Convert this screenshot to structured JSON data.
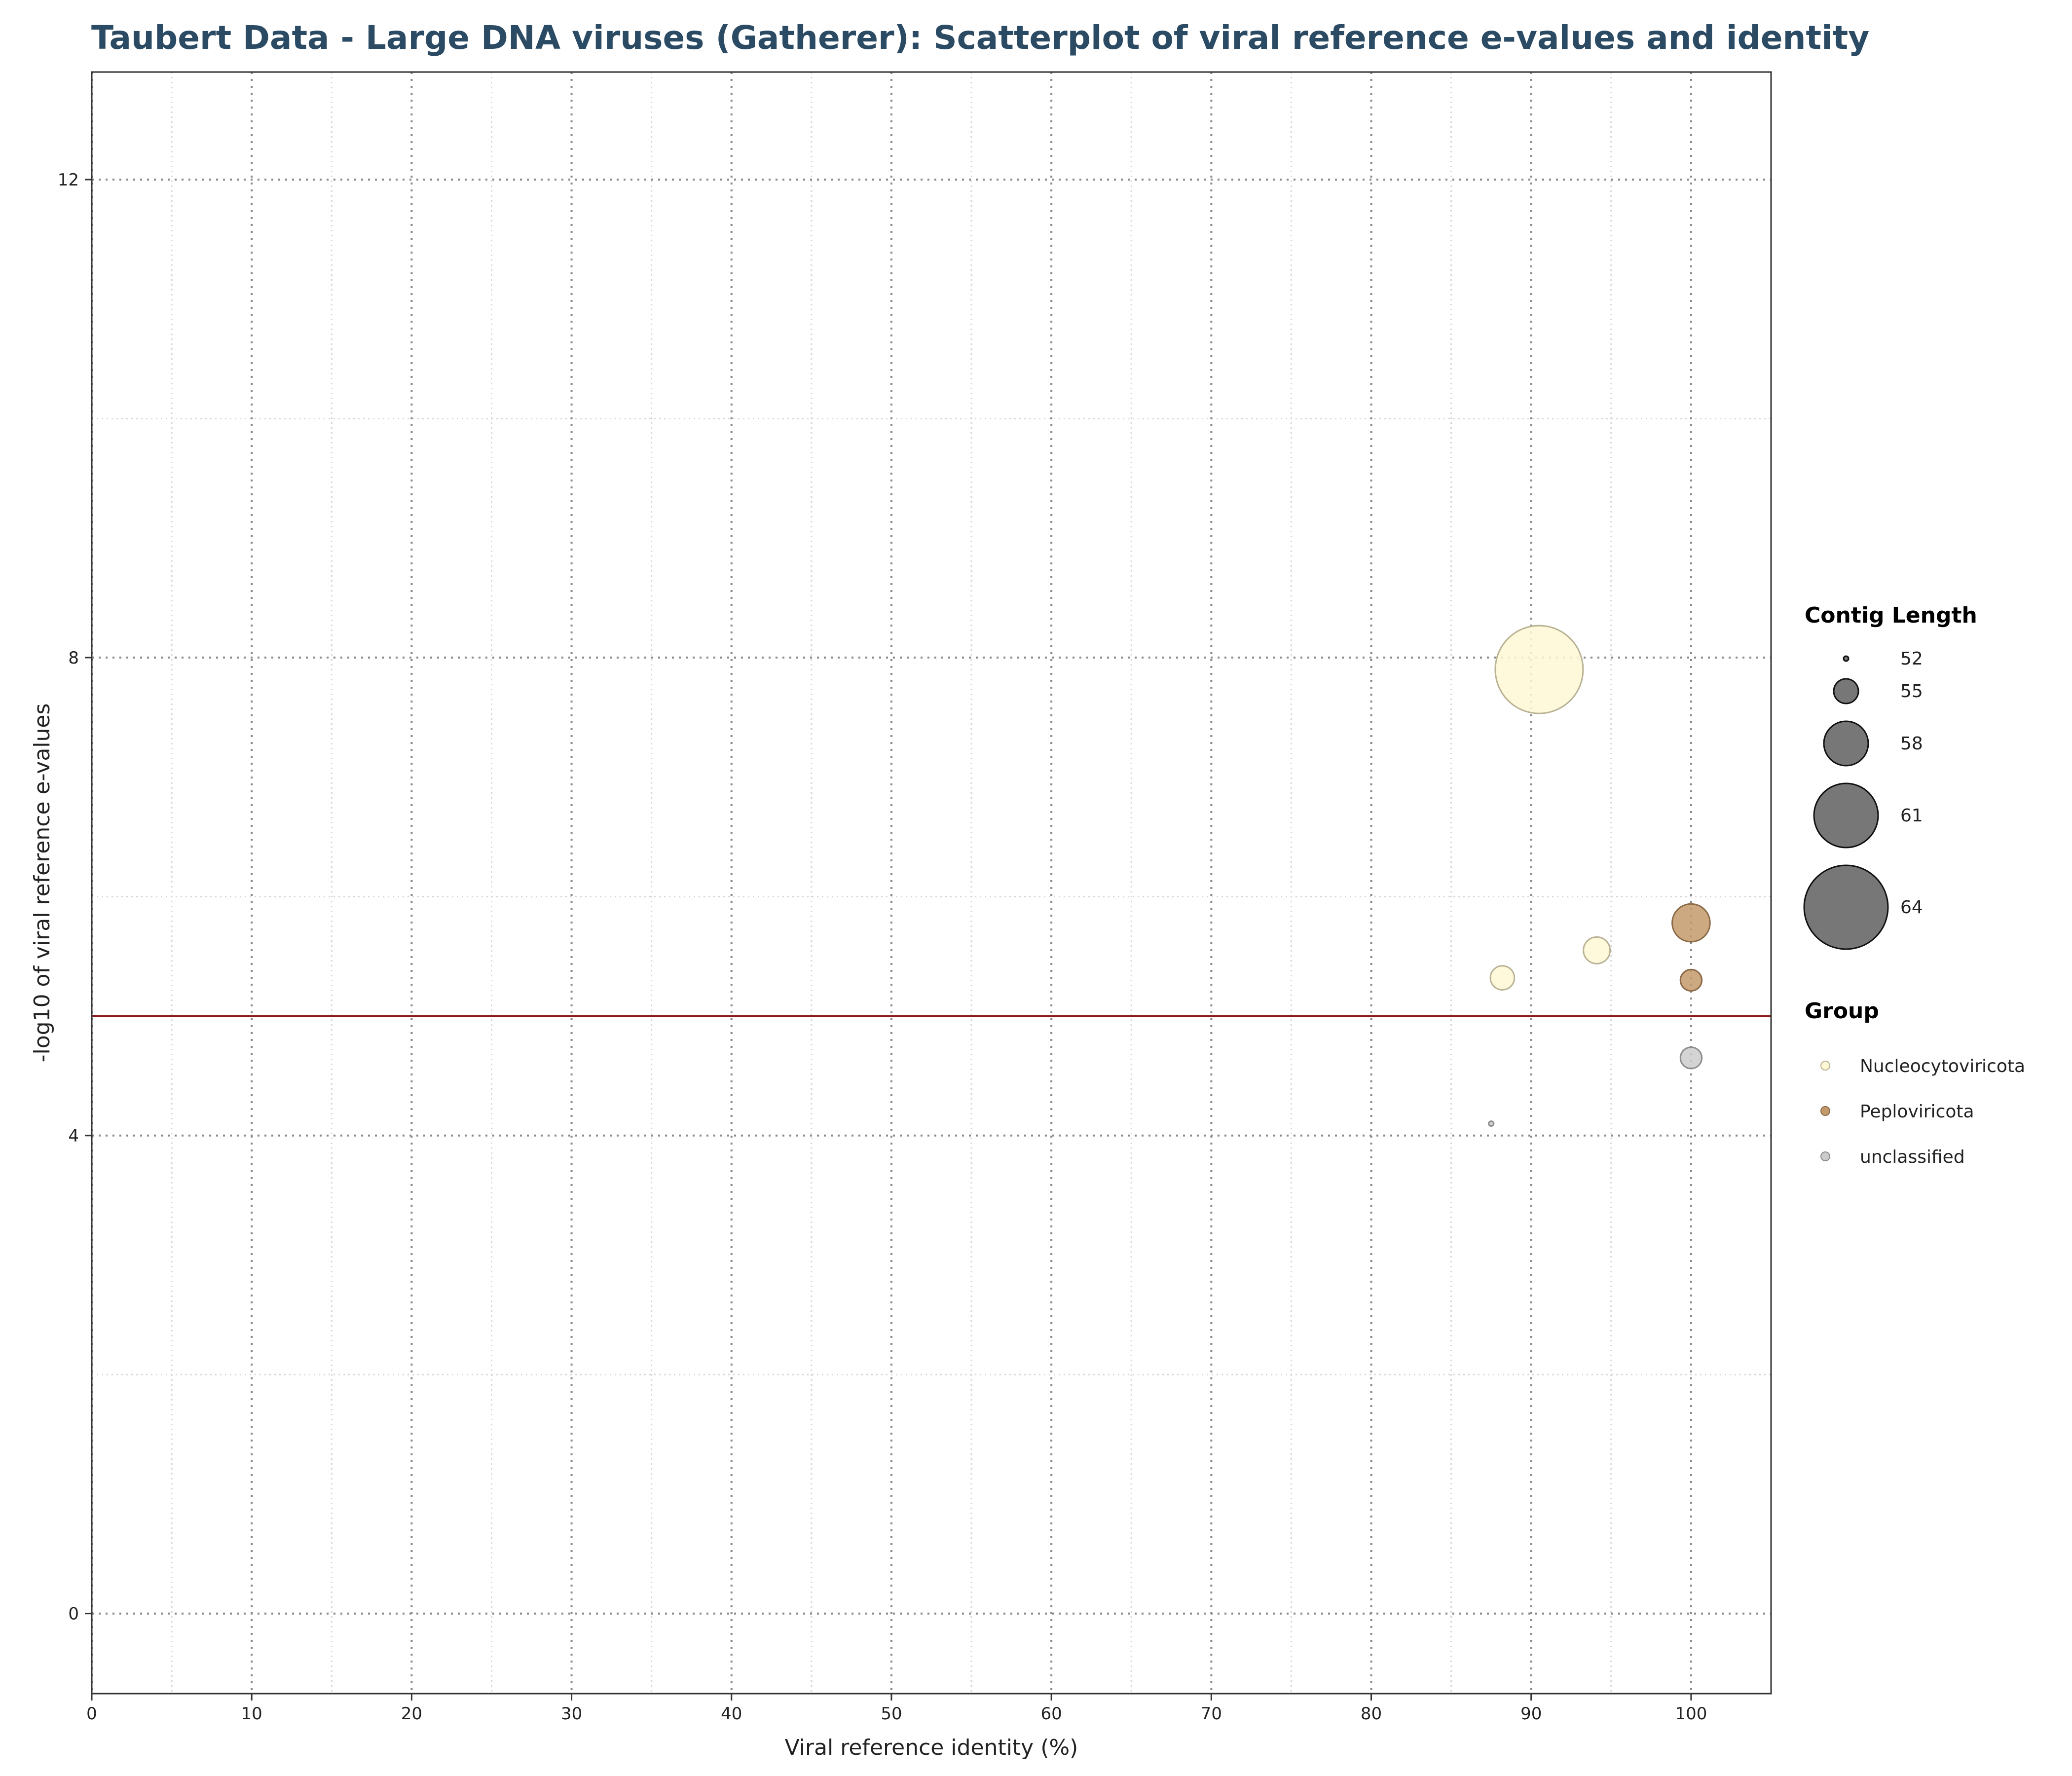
{
  "chart_data": {
    "type": "scatter",
    "title": "Taubert Data - Large DNA viruses (Gatherer): Scatterplot of viral reference e-values and identity",
    "xlabel": "Viral reference identity (%)",
    "ylabel": "-log10 of viral reference e-values",
    "xlim": [
      0,
      105
    ],
    "ylim": [
      -0.67,
      12.9
    ],
    "x_ticks": [
      0,
      10,
      20,
      30,
      40,
      50,
      60,
      70,
      80,
      90,
      100
    ],
    "y_ticks": [
      0,
      4,
      8,
      12
    ],
    "grid": true,
    "threshold_line": {
      "y": 5.0,
      "color": "#8b1a1a"
    },
    "size_legend": {
      "title": "Contig Length",
      "entries": [
        {
          "label": "52",
          "value": 52
        },
        {
          "label": "55",
          "value": 55
        },
        {
          "label": "58",
          "value": 58
        },
        {
          "label": "61",
          "value": 61
        },
        {
          "label": "64",
          "value": 64
        }
      ]
    },
    "color_legend": {
      "title": "Group",
      "entries": [
        {
          "label": "Nucleocytoviricota",
          "color": "#fff8d6"
        },
        {
          "label": "Peploviricota",
          "color": "#c49a6c"
        },
        {
          "label": "unclassified",
          "color": "#cccccc"
        }
      ]
    },
    "points": [
      {
        "x": 90.5,
        "y": 7.9,
        "size": 64.6,
        "group": "Nucleocytoviricota"
      },
      {
        "x": 94.1,
        "y": 5.55,
        "size": 55.3,
        "group": "Nucleocytoviricota"
      },
      {
        "x": 88.2,
        "y": 5.32,
        "size": 54.9,
        "group": "Nucleocytoviricota"
      },
      {
        "x": 100,
        "y": 5.78,
        "size": 57.0,
        "group": "Peploviricota"
      },
      {
        "x": 100,
        "y": 5.3,
        "size": 54.5,
        "group": "Peploviricota"
      },
      {
        "x": 100,
        "y": 4.65,
        "size": 54.5,
        "group": "unclassified"
      },
      {
        "x": 87.5,
        "y": 4.1,
        "size": 52.0,
        "group": "unclassified"
      }
    ],
    "legend_position": "right"
  }
}
